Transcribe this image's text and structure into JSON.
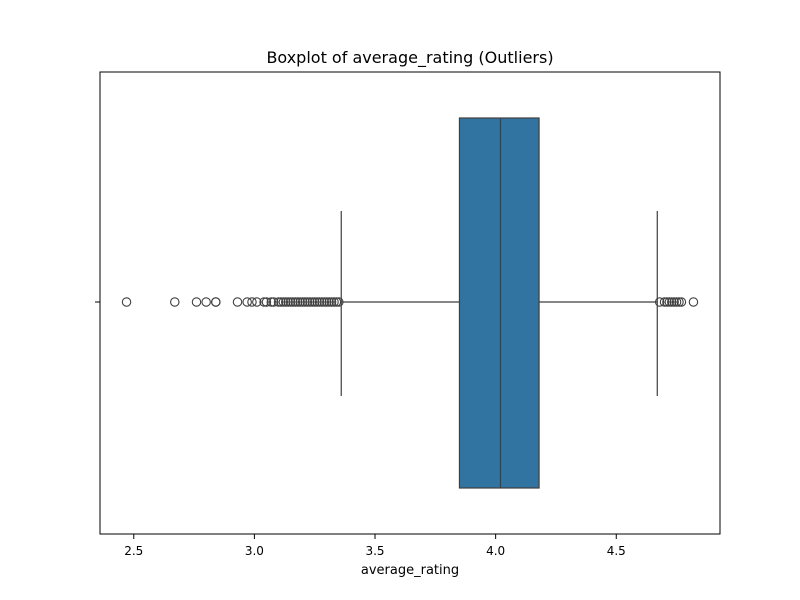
{
  "chart_data": {
    "type": "box",
    "title": "Boxplot of average_rating (Outliers)",
    "xlabel": "average_rating",
    "ylabel": "",
    "xlim": [
      2.36,
      4.93
    ],
    "xticks": [
      2.5,
      3.0,
      3.5,
      4.0,
      4.5
    ],
    "xtick_labels": [
      "2.5",
      "3.0",
      "3.5",
      "4.0",
      "4.5"
    ],
    "orientation": "horizontal",
    "grid": false,
    "box": {
      "q1": 3.85,
      "median": 4.02,
      "q3": 4.18,
      "whisker_low": 3.36,
      "whisker_high": 4.67,
      "color": "#3274a1",
      "edge_color": "#3f3f3f"
    },
    "outliers": [
      2.47,
      2.67,
      2.76,
      2.8,
      2.84,
      2.84,
      2.93,
      2.97,
      2.99,
      3.01,
      3.04,
      3.05,
      3.07,
      3.08,
      3.1,
      3.11,
      3.12,
      3.13,
      3.14,
      3.15,
      3.16,
      3.17,
      3.18,
      3.19,
      3.2,
      3.21,
      3.22,
      3.23,
      3.24,
      3.25,
      3.26,
      3.27,
      3.28,
      3.29,
      3.3,
      3.31,
      3.32,
      3.33,
      3.34,
      3.35,
      4.68,
      4.7,
      4.71,
      4.72,
      4.73,
      4.74,
      4.75,
      4.76,
      4.77,
      4.82
    ]
  }
}
